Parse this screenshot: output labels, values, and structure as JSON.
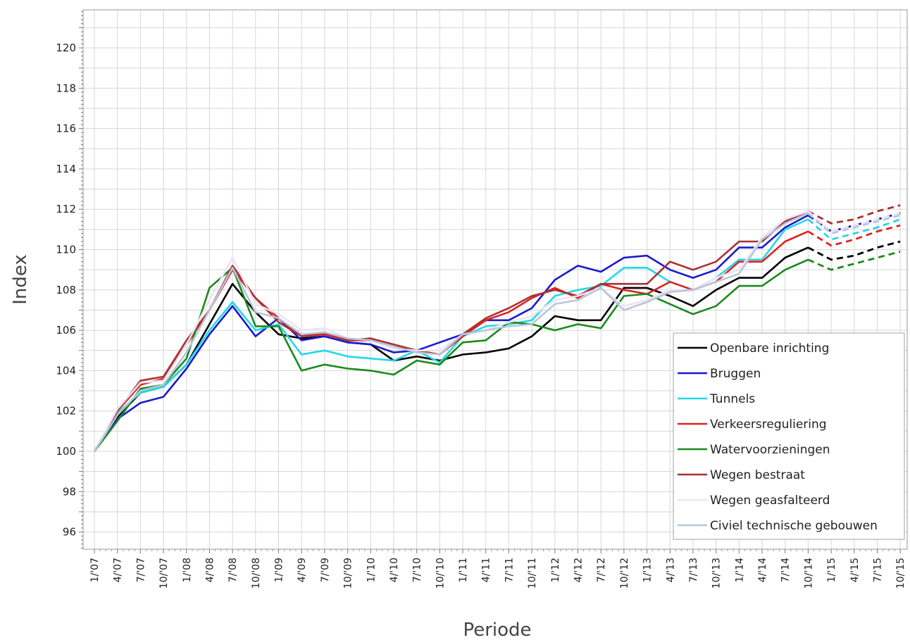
{
  "chart_data": {
    "type": "line",
    "title": "",
    "xlabel": "Periode",
    "ylabel": "Index",
    "ylim": [
      95,
      122
    ],
    "yticks": [
      96,
      98,
      100,
      102,
      104,
      106,
      108,
      110,
      112,
      114,
      116,
      118,
      120
    ],
    "grid": true,
    "legend_position": "bottom-right",
    "categories": [
      "1/'07",
      "4/'07",
      "7/'07",
      "10/'07",
      "1/'08",
      "4/'08",
      "7/'08",
      "10/'08",
      "1/'09",
      "4/'09",
      "7/'09",
      "10/'09",
      "1/'10",
      "4/'10",
      "7/'10",
      "10/'10",
      "1/'11",
      "4/'11",
      "7/'11",
      "10/'11",
      "1/'12",
      "4/'12",
      "7/'12",
      "10/'12",
      "1/'13",
      "4/'13",
      "7/'13",
      "10/'13",
      "1/'14",
      "4/'14",
      "7/'14",
      "10/'14",
      "1/'15",
      "4/'15",
      "7/'15",
      "10/'15"
    ],
    "forecast_start_index": 31,
    "series": [
      {
        "name": "Openbare inrichting",
        "color": "#000000",
        "values": [
          100.0,
          101.7,
          102.9,
          103.2,
          104.3,
          106.3,
          108.3,
          106.9,
          105.8,
          105.6,
          105.7,
          105.4,
          105.3,
          104.5,
          104.7,
          104.5,
          104.8,
          104.9,
          105.1,
          105.7,
          106.7,
          106.5,
          106.5,
          108.1,
          108.1,
          107.7,
          107.2,
          108.0,
          108.6,
          108.6,
          109.6,
          110.1,
          109.5,
          109.7,
          110.1,
          110.4
        ]
      },
      {
        "name": "Bruggen",
        "color": "#1a1acc",
        "values": [
          100.0,
          101.6,
          102.4,
          102.7,
          104.1,
          105.8,
          107.2,
          105.7,
          106.6,
          105.5,
          105.7,
          105.4,
          105.3,
          104.9,
          105.0,
          105.4,
          105.8,
          106.5,
          106.5,
          107.1,
          108.5,
          109.2,
          108.9,
          109.6,
          109.7,
          109.0,
          108.6,
          109.0,
          110.1,
          110.1,
          111.1,
          111.7,
          110.9,
          111.2,
          111.5,
          111.8
        ]
      },
      {
        "name": "Tunnels",
        "color": "#22d8e8",
        "values": [
          100.0,
          101.9,
          102.9,
          103.2,
          104.3,
          106.0,
          107.4,
          106.0,
          106.3,
          104.8,
          105.0,
          104.7,
          104.6,
          104.5,
          105.0,
          104.4,
          105.7,
          106.2,
          106.3,
          106.5,
          107.7,
          108.0,
          108.2,
          109.1,
          109.1,
          108.4,
          108.0,
          108.6,
          109.5,
          109.5,
          111.0,
          111.5,
          110.5,
          110.8,
          111.1,
          111.5
        ]
      },
      {
        "name": "Verkeersreguliering",
        "color": "#dd2222",
        "values": [
          100.0,
          102.0,
          103.3,
          103.6,
          105.3,
          107.0,
          109.0,
          107.6,
          106.6,
          105.7,
          105.8,
          105.5,
          105.5,
          105.2,
          105.0,
          104.8,
          105.7,
          106.5,
          106.9,
          107.6,
          108.1,
          107.6,
          108.3,
          108.0,
          107.8,
          108.4,
          108.0,
          108.4,
          109.4,
          109.4,
          110.4,
          110.9,
          110.2,
          110.5,
          110.9,
          111.2
        ]
      },
      {
        "name": "Watervoorzieningen",
        "color": "#1a8a1a",
        "values": [
          100.0,
          101.5,
          103.1,
          103.3,
          104.6,
          108.1,
          109.1,
          106.2,
          106.2,
          104.0,
          104.3,
          104.1,
          104.0,
          103.8,
          104.5,
          104.3,
          105.4,
          105.5,
          106.4,
          106.3,
          106.0,
          106.3,
          106.1,
          107.7,
          107.8,
          107.3,
          106.8,
          107.2,
          108.2,
          108.2,
          109.0,
          109.5,
          109.0,
          109.3,
          109.6,
          109.9
        ]
      },
      {
        "name": "Wegen bestraat",
        "color": "#a83232",
        "values": [
          100.0,
          102.0,
          103.5,
          103.7,
          105.5,
          107.0,
          109.2,
          107.6,
          106.4,
          105.7,
          105.9,
          105.5,
          105.6,
          105.3,
          105.0,
          104.8,
          105.8,
          106.6,
          107.1,
          107.7,
          108.0,
          107.7,
          108.3,
          108.3,
          108.3,
          109.4,
          109.0,
          109.4,
          110.4,
          110.4,
          111.4,
          111.9,
          111.3,
          111.5,
          111.9,
          112.2
        ]
      },
      {
        "name": "Wegen geasfalteerd",
        "color": "#ece4f4",
        "values": [
          100.0,
          102.1,
          103.4,
          103.5,
          105.3,
          107.5,
          109.6,
          107.3,
          106.8,
          106.0,
          106.1,
          105.6,
          105.5,
          105.1,
          105.0,
          105.0,
          105.8,
          106.0,
          106.4,
          106.7,
          107.5,
          107.7,
          108.1,
          107.2,
          107.5,
          108.0,
          108.0,
          108.6,
          109.0,
          110.6,
          111.5,
          111.9,
          110.9,
          111.2,
          111.5,
          111.8
        ]
      },
      {
        "name": "Civiel technische gebouwen",
        "color": "#b8c6dc",
        "values": [
          100.0,
          101.8,
          103.0,
          103.3,
          104.9,
          107.0,
          109.1,
          106.9,
          106.6,
          105.8,
          105.9,
          105.6,
          105.5,
          105.2,
          104.9,
          104.8,
          105.8,
          106.0,
          106.2,
          106.3,
          107.3,
          107.5,
          108.1,
          107.0,
          107.4,
          107.9,
          108.0,
          108.4,
          108.8,
          110.5,
          111.3,
          111.8,
          110.8,
          111.1,
          111.4,
          111.7
        ]
      }
    ]
  }
}
